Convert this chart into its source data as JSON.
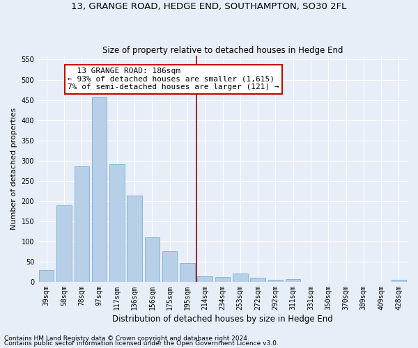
{
  "title": "13, GRANGE ROAD, HEDGE END, SOUTHAMPTON, SO30 2FL",
  "subtitle": "Size of property relative to detached houses in Hedge End",
  "xlabel": "Distribution of detached houses by size in Hedge End",
  "ylabel": "Number of detached properties",
  "categories": [
    "39sqm",
    "58sqm",
    "78sqm",
    "97sqm",
    "117sqm",
    "136sqm",
    "156sqm",
    "175sqm",
    "195sqm",
    "214sqm",
    "234sqm",
    "253sqm",
    "272sqm",
    "292sqm",
    "311sqm",
    "331sqm",
    "350sqm",
    "370sqm",
    "389sqm",
    "409sqm",
    "428sqm"
  ],
  "values": [
    30,
    190,
    285,
    458,
    290,
    213,
    110,
    75,
    47,
    13,
    12,
    21,
    10,
    5,
    6,
    0,
    0,
    0,
    0,
    0,
    5
  ],
  "bar_color": "#b8cfe8",
  "bar_edgecolor": "#7aafd4",
  "bar_linewidth": 0.6,
  "vline_color": "#990000",
  "vline_linewidth": 1.2,
  "vline_pos": 8.5,
  "annotation_text": "  13 GRANGE ROAD: 186sqm\n← 93% of detached houses are smaller (1,615)\n7% of semi-detached houses are larger (121) →",
  "annotation_box_edgecolor": "#cc0000",
  "annotation_box_facecolor": "white",
  "ylim": [
    0,
    560
  ],
  "yticks": [
    0,
    50,
    100,
    150,
    200,
    250,
    300,
    350,
    400,
    450,
    500,
    550
  ],
  "background_color": "#e8eef8",
  "grid_color": "#ffffff",
  "footer1": "Contains HM Land Registry data © Crown copyright and database right 2024.",
  "footer2": "Contains public sector information licensed under the Open Government Licence v3.0.",
  "title_fontsize": 9.5,
  "subtitle_fontsize": 8.5,
  "xlabel_fontsize": 8.5,
  "ylabel_fontsize": 8,
  "tick_fontsize": 7,
  "annotation_fontsize": 8,
  "footer_fontsize": 6.5
}
